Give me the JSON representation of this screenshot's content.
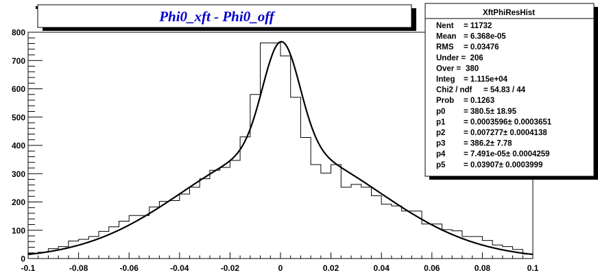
{
  "chart_data": {
    "type": "histogram",
    "title": "Phi0_xft - Phi0_off",
    "xlabel": "",
    "ylabel": "",
    "xlim": [
      -0.1,
      0.1
    ],
    "ylim": [
      0,
      800
    ],
    "x_ticks": [
      -0.1,
      -0.08,
      -0.06,
      -0.04,
      -0.02,
      0,
      0.02,
      0.04,
      0.06,
      0.08,
      0.1
    ],
    "x_tick_labels": [
      "-0.1",
      "-0.08",
      "-0.06",
      "-0.04",
      "-0.02",
      "0",
      "0.02",
      "0.04",
      "0.06",
      "0.08",
      "0.1"
    ],
    "y_ticks": [
      0,
      100,
      200,
      300,
      400,
      500,
      600,
      700,
      800
    ],
    "y_tick_labels": [
      "0",
      "100",
      "200",
      "300",
      "400",
      "500",
      "600",
      "700",
      "800"
    ],
    "bin_edges": [
      -0.1,
      0.1
    ],
    "bin_count": 50,
    "bin_values": [
      18,
      22,
      35,
      42,
      62,
      68,
      78,
      96,
      112,
      132,
      152,
      152,
      182,
      202,
      205,
      228,
      252,
      282,
      312,
      322,
      347,
      430,
      580,
      762,
      762,
      716,
      570,
      428,
      332,
      302,
      332,
      252,
      262,
      252,
      222,
      192,
      186,
      168,
      168,
      122,
      122,
      102,
      98,
      78,
      78,
      64,
      48,
      42,
      32,
      16
    ],
    "fit": {
      "type": "line",
      "description": "double Gaussian fit",
      "params": {
        "p0": 380.5,
        "p1": 0.0003596,
        "p2": 0.007277,
        "p3": 386.2,
        "p4": 7.491e-05,
        "p5": 0.03907
      }
    },
    "stats_box": {
      "name": "XftPhiResHist",
      "rows": [
        {
          "label": "Nent",
          "value": "= 11732"
        },
        {
          "label": "Mean",
          "value": "= 6.368e-05"
        },
        {
          "label": "RMS",
          "value": "= 0.03476"
        },
        {
          "label": "Under =",
          "value": "206"
        },
        {
          "label": "Over =",
          "value": "380"
        },
        {
          "label": "Integ",
          "value": "= 1.115e+04"
        },
        {
          "label": "Chi2 / ndf",
          "value": "= 54.83 / 44"
        },
        {
          "label": "Prob",
          "value": "= 0.1263"
        },
        {
          "label": "p0",
          "value": "= 380.5± 18.95"
        },
        {
          "label": "p1",
          "value": "= 0.0003596± 0.0003651"
        },
        {
          "label": "p2",
          "value": "= 0.007277± 0.0004138"
        },
        {
          "label": "p3",
          "value": "= 386.2± 7.78"
        },
        {
          "label": "p4",
          "value": "= 7.491e-05± 0.0004259"
        },
        {
          "label": "p5",
          "value": "= 0.03907± 0.0003999"
        }
      ]
    },
    "grid": false,
    "colors": {
      "histogram": "#000000",
      "fit": "#000000",
      "title": "#0000cc",
      "background": "#ffffff"
    }
  }
}
